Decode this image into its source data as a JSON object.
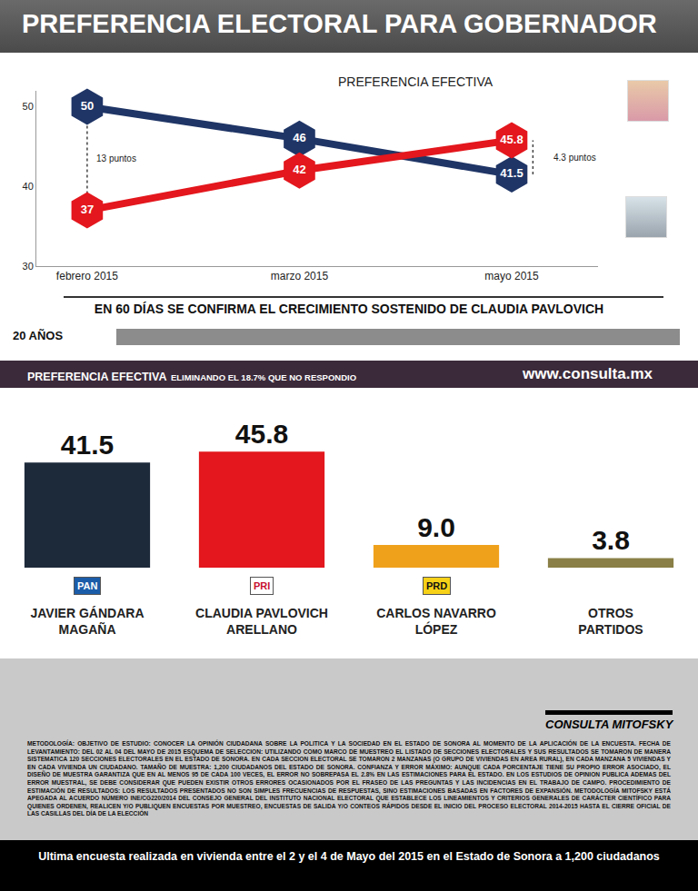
{
  "header": {
    "title": "PREFERENCIA ELECTORAL PARA GOBERNADOR"
  },
  "chart_data": [
    {
      "type": "line",
      "annotations": [
        {
          "text": "PREFERENCIA EFECTIVA"
        },
        {
          "text": "13 puntos"
        },
        {
          "text": "4.3 puntos"
        }
      ],
      "subtitle": "EN 60 DÍAS SE CONFIRMA EL CRECIMIENTO SOSTENIDO DE CLAUDIA PAVLOVICH",
      "categories": [
        "febrero 2015",
        "marzo 2015",
        "mayo 2015"
      ],
      "series": [
        {
          "color": "#1f3566",
          "values": [
            50,
            46,
            41.5
          ],
          "marker": "hexagon"
        },
        {
          "color": "#e3171d",
          "values": [
            37,
            42,
            45.8
          ],
          "marker": "hexagon"
        }
      ],
      "ylim": [
        30,
        52
      ],
      "yticks": [
        30,
        40,
        50
      ],
      "grid": false,
      "data_labels": true
    },
    {
      "type": "bar",
      "title": "PREFERENCIA EFECTIVA",
      "subtitle": "ELIMINANDO EL 18.7% QUE NO RESPONDIO",
      "categories": [
        "JAVIER GÁNDARA MAGAÑA",
        "CLAUDIA PAVLOVICH ARELLANO",
        "CARLOS NAVARRO LÓPEZ",
        "OTROS PARTIDOS"
      ],
      "party_logos": [
        "PAN",
        "PRI",
        "PRD",
        null
      ],
      "values": [
        41.5,
        45.8,
        9.0,
        3.8
      ],
      "value_labels": [
        "41.5",
        "45.8",
        "9.0",
        "3.8"
      ],
      "colors": [
        "#1d2a3a",
        "#e3171d",
        "#f0a11c",
        "#8a7f46"
      ],
      "ylim": [
        0,
        52
      ],
      "grid": false,
      "data_labels": true,
      "tick_labels": "x"
    }
  ],
  "branding": {
    "anniversary": "20 AÑOS",
    "website": "www.consulta.mx",
    "logo": "CONSULTA MITOFSKY"
  },
  "methodology": "METODOLOGÍA: OBJETIVO DE ESTUDIO: CONOCER LA OPINIÓN CIUDADANA SOBRE LA POLITICA Y LA SOCIEDAD EN EL ESTADO DE SONORA AL MOMENTO DE LA APLICACIÓN DE LA ENCUESTA. FECHA DE LEVANTAMIENTO: DEL 02 AL 04 DEL MAYO DE 2015 ESQUEMA DE SELECCION: UTILIZANDO COMO MARCO DE MUESTREO EL LISTADO DE SECCIONES ELECTORALES Y SUS RESULTADOS SE TOMARON DE MANERA SISTEMATICA 120 SECCIONES ELECTORALES EN EL ESTADO DE SONORA. EN CADA SECCION ELECTORAL SE TOMARON 2 MANZANAS (O GRUPO DE VIVIENDAS EN AREA RURAL), EN CADA MANZANA 5 VIVIENDAS Y EN CADA VIVIENDA UN CIUDADANO. TAMAÑO DE MUESTRA: 1,200 CIUDADANOS DEL ESTADO DE SONORA. CONFIANZA Y ERROR MÁXIMO: AUNQUE CADA PORCENTAJE TIENE SU PROPIO ERROR ASOCIADO, EL DISEÑO DE MUESTRA GARANTIZA QUE EN AL MENOS 95 DE CADA 100 VECES, EL ERROR NO SOBREPASA EL 2.8% EN LAS ESTIMACIONES PARA EL ESTADO. EN LOS ESTUDIOS DE OPINION PUBLICA ADEMAS DEL ERROR MUESTRAL, SE DEBE CONSIDERAR QUE PUEDEN EXISTIR OTROS ERRORES OCASIONADOS POR EL FRASEO DE LAS PREGUNTAS Y LAS INCIDENCIAS EN EL TRABAJO DE CAMPO. PROCEDIMIENTO DE ESTIMACIÓN DE RESULTADOS: LOS RESULTADOS PRESENTADOS NO SON SIMPLES FRECUENCIAS DE RESPUESTAS, SINO ESTIMACIONES BASADAS EN FACTORES DE EXPANSIÓN. METODOLOGÍA MITOFSKY ESTÁ APEGADA AL ACUERDO NÚMERO INE/CG220/2014 DEL CONSEJO GENERAL DEL INSTITUTO NACIONAL ELECTORAL QUE ESTABLECE LOS LINEAMIENTOS Y CRITERIOS GENERALES DE CARÁCTER CIENTÍFICO PARA QUIENES ORDENEN, REALICEN Y/O PUBLIQUEN ENCUESTAS POR MUESTREO, ENCUESTAS DE SALIDA Y/O CONTEOS RÁPIDOS DESDE EL INICIO DEL PROCESO ELECTORAL 2014-2015 HASTA EL CIERRE OFICIAL DE LAS CASILLAS DEL DÍA DE LA ELECCIÓN",
  "footer": "Ultima encuesta realizada en vivienda entre el 2 y el 4 de Mayo del 2015 en el Estado de Sonora a 1,200 ciudadanos"
}
